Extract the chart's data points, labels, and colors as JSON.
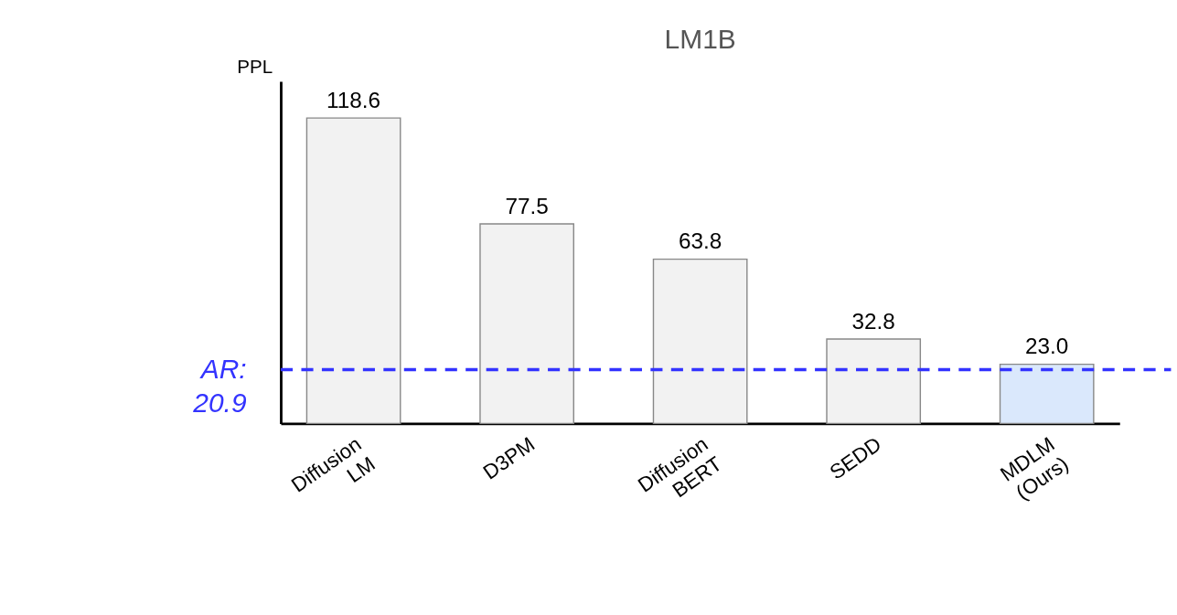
{
  "chart_data": {
    "type": "bar",
    "title": "LM1B",
    "ylabel": "PPL",
    "categories": [
      "Diffusion LM",
      "D3PM",
      "Diffusion BERT",
      "SEDD",
      "MDLM (Ours)"
    ],
    "values": [
      118.6,
      77.5,
      63.8,
      32.8,
      23.0
    ],
    "colors": [
      "#f2f2f2",
      "#f2f2f2",
      "#f2f2f2",
      "#f2f2f2",
      "#dae8fc"
    ],
    "relative": false,
    "value_labels": [
      "118.6",
      "77.5",
      "63.8",
      "32.8",
      "23.0"
    ],
    "ref_lines": [
      {
        "axis": "y",
        "value": 20.9,
        "label": "AR: 20.9",
        "color": "#3333ff",
        "line_style": "dashed"
      }
    ]
  }
}
